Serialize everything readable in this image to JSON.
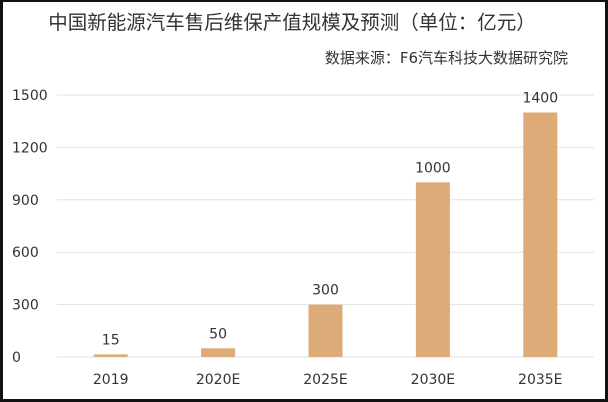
{
  "chart_data": {
    "type": "bar",
    "title": "中国新能源汽车售后维保产值规模及预测（单位：亿元）",
    "subtitle": "数据来源：F6汽车科技大数据研究院",
    "categories": [
      "2019",
      "2020E",
      "2025E",
      "2030E",
      "2035E"
    ],
    "values": [
      15,
      50,
      300,
      1000,
      1400
    ],
    "data_labels": [
      "15",
      "50",
      "300",
      "1000",
      "1400"
    ],
    "yticks": [
      0,
      300,
      600,
      900,
      1200,
      1500
    ],
    "ytick_labels": [
      "0",
      "300",
      "600",
      "900",
      "1200",
      "1500"
    ],
    "ylim": [
      0,
      1500
    ],
    "xlabel": "",
    "ylabel": "",
    "grid": true,
    "legend": "none",
    "bar_color": "#DDAB78",
    "grid_color": "#E3E3E3"
  }
}
